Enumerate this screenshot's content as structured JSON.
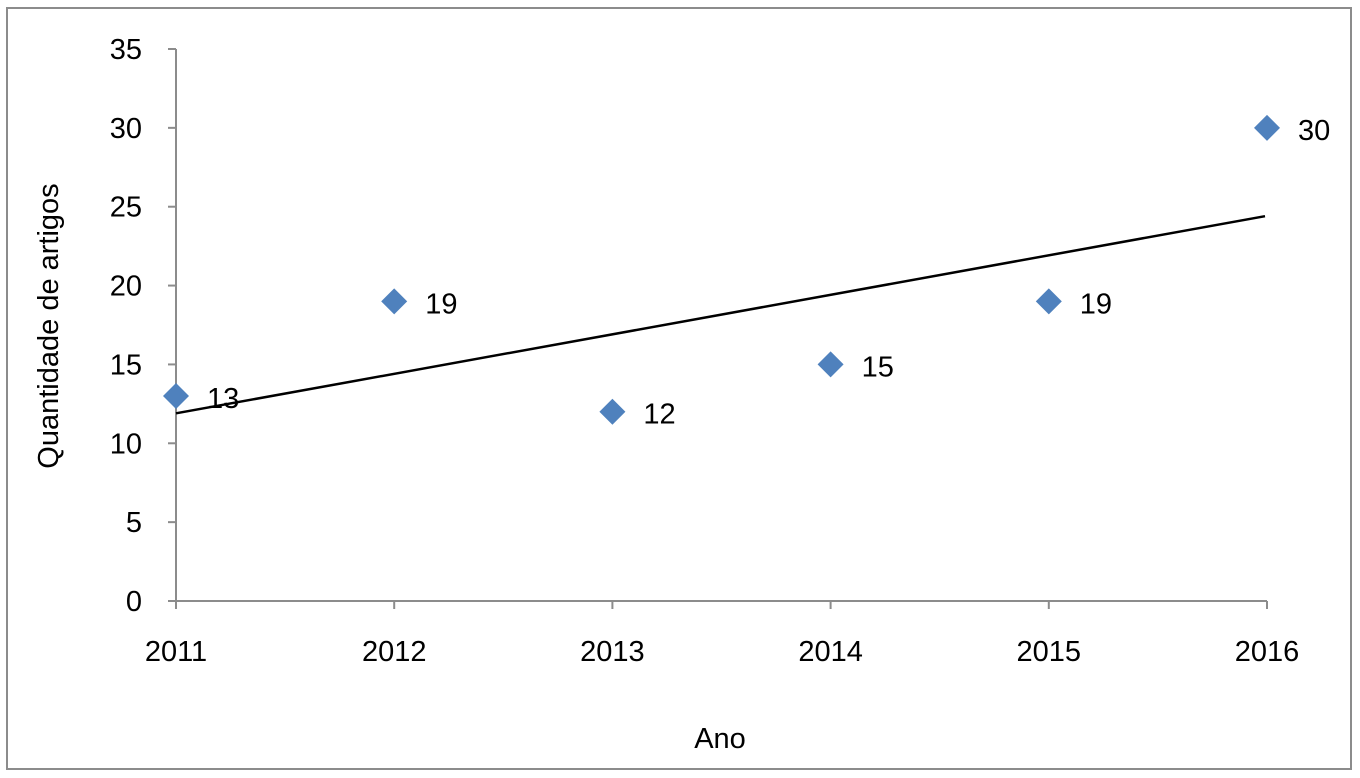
{
  "chart_data": {
    "type": "scatter",
    "title": "",
    "xlabel": "Ano",
    "ylabel": "Quantidade de artigos",
    "x": [
      "2011",
      "2012",
      "2013",
      "2014",
      "2015",
      "2016"
    ],
    "values": [
      13,
      19,
      12,
      15,
      19,
      30
    ],
    "data_labels": [
      "13",
      "19",
      "12",
      "15",
      "19",
      "30"
    ],
    "yticks": [
      "0",
      "5",
      "10",
      "15",
      "20",
      "25",
      "30",
      "35"
    ],
    "ylim": [
      0,
      35
    ],
    "trendline": {
      "type": "linear",
      "start": 11.9,
      "end": 24.4
    },
    "grid": false,
    "legend": "none",
    "marker": "diamond",
    "colors": {
      "marker": "#4f81bd",
      "trendline": "#000000",
      "axis": "#8c8c8c",
      "border": "#8c8c8c"
    }
  }
}
